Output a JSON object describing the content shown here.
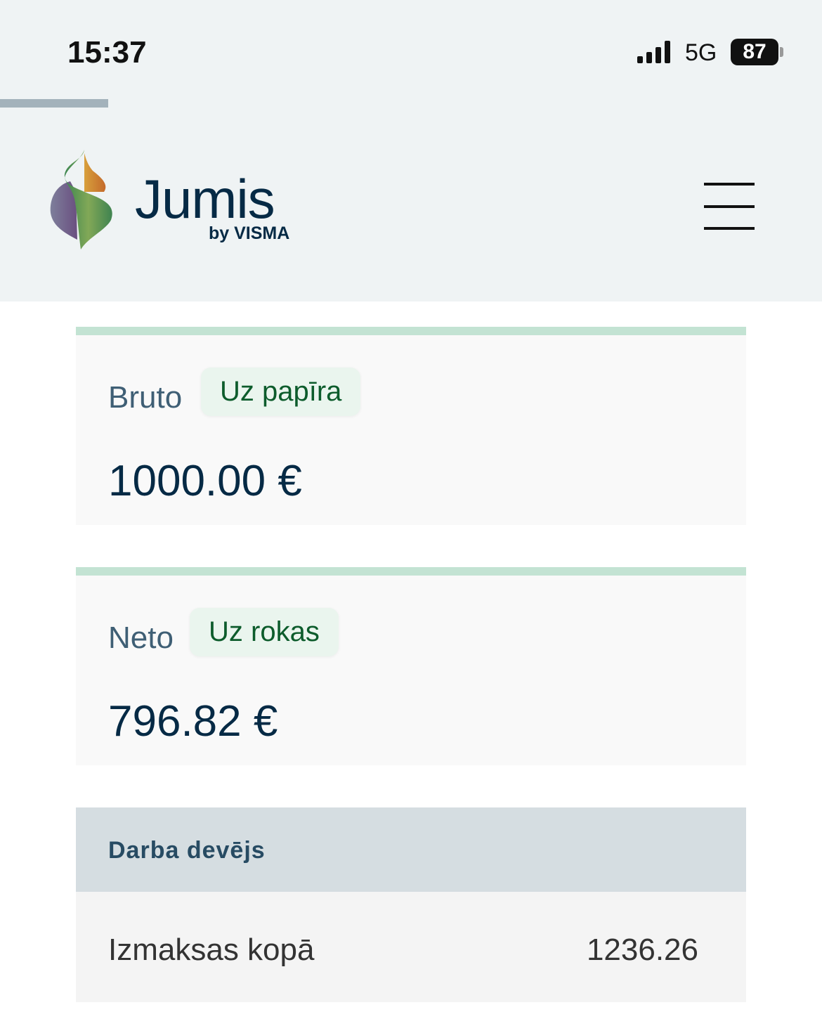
{
  "status_bar": {
    "time": "15:37",
    "network": "5G",
    "battery": "87"
  },
  "header": {
    "brand": "Jumis",
    "brand_sub": "by VISMA"
  },
  "cards": [
    {
      "label": "Bruto",
      "badge": "Uz papīra",
      "amount": "1000.00 €"
    },
    {
      "label": "Neto",
      "badge": "Uz rokas",
      "amount": "796.82 €"
    }
  ],
  "employer": {
    "title": "Darba devējs",
    "rows": [
      {
        "label": "Izmaksas kopā",
        "value": "1236.26"
      }
    ]
  },
  "colors": {
    "accent_border": "#c3e3d3",
    "badge_text": "#0d5c2c",
    "brand_dark": "#062a45"
  }
}
